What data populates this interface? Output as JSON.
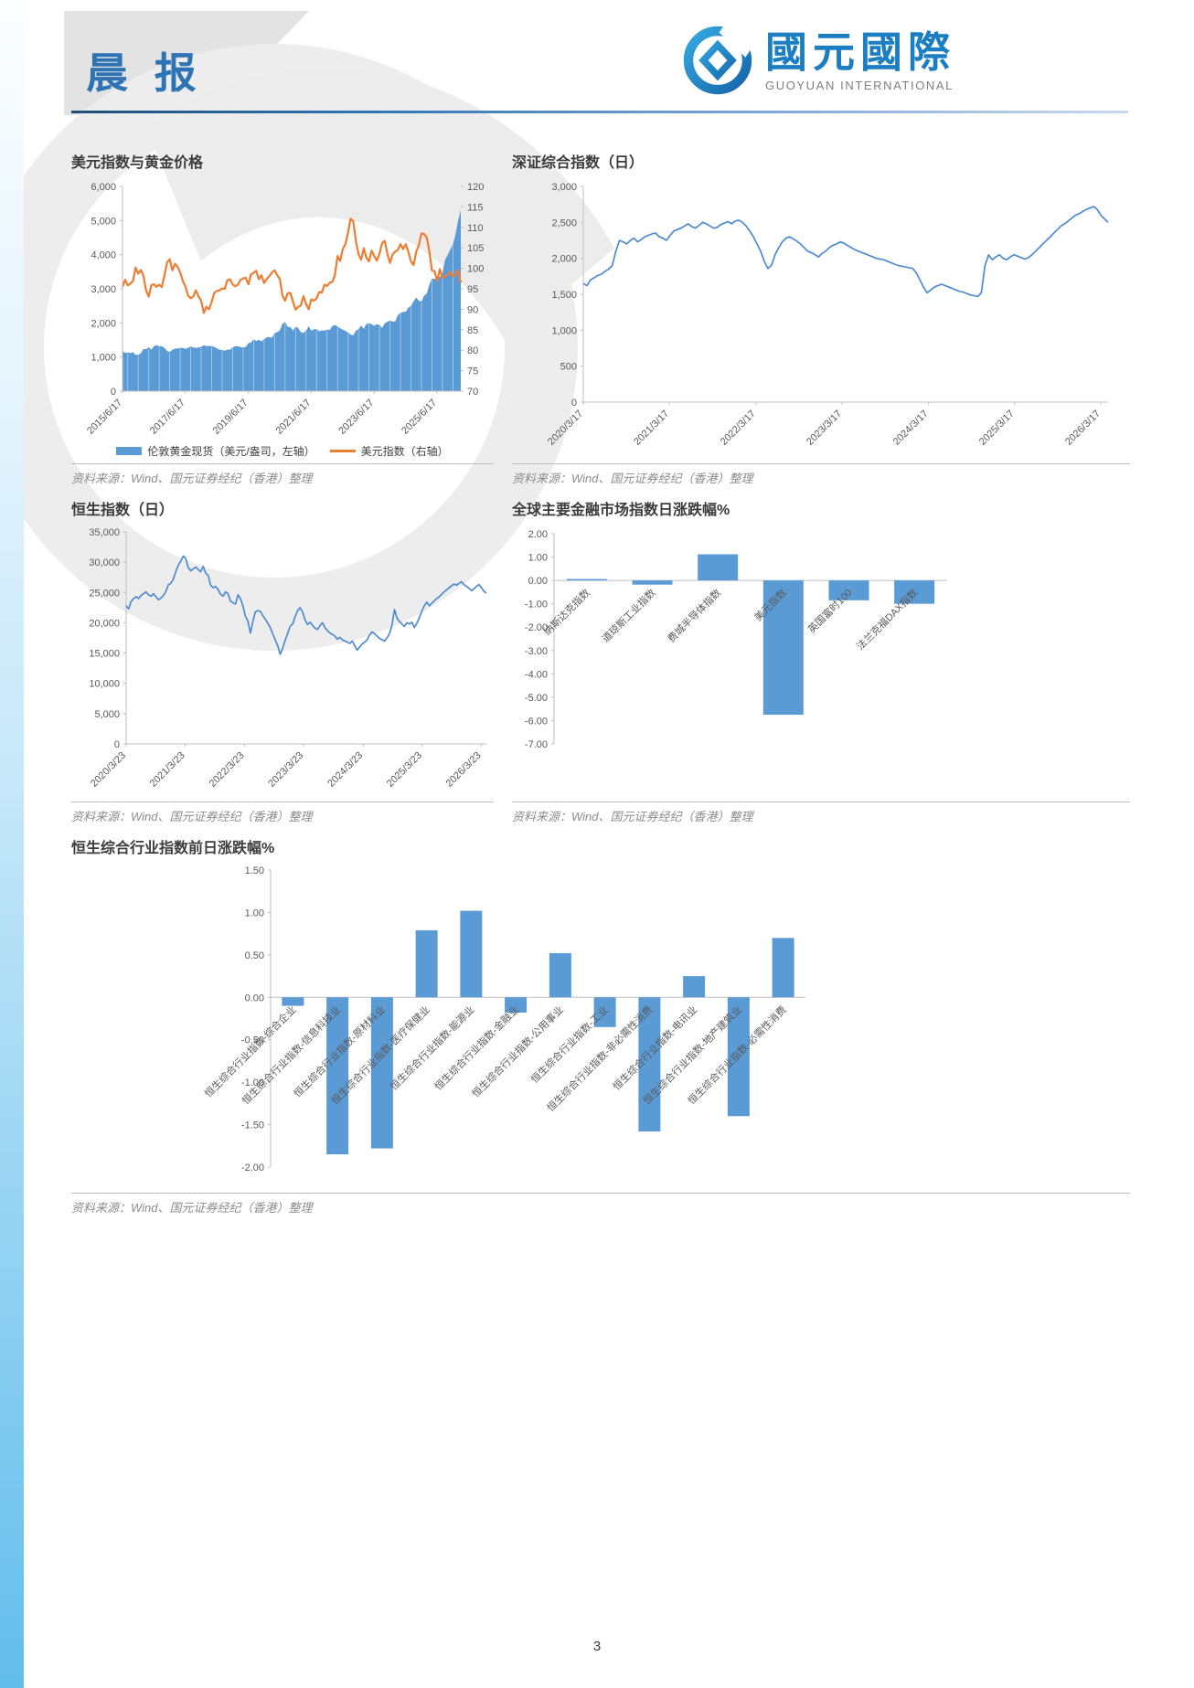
{
  "header": {
    "title": "晨 报"
  },
  "logo": {
    "name_cn": "國元國際",
    "name_en": "GUOYUAN INTERNATIONAL"
  },
  "footer": {
    "page_number": "3"
  },
  "source_note": "资料来源：Wind、国元证券经纪（香港）整理",
  "colors": {
    "accent_blue": "#2E74B5",
    "brand_blue": "#1B7EC2",
    "series_blue": "#5B9BD5",
    "line_blue": "#4F8BD0",
    "series_orange": "#ED7D31",
    "axis_gray": "#BFBFBF",
    "tick_text": "#595959"
  },
  "chart_data": [
    {
      "id": "gold-usd",
      "type": "area+line-dual-axis",
      "title": "美元指数与黄金价格",
      "legend": [
        "伦敦黄金现货（美元/盎司，左轴）",
        "美元指数（右轴）"
      ],
      "left_axis": {
        "lim": [
          0,
          6000
        ],
        "ticks": [
          "6,000",
          "5,000",
          "4,000",
          "3,000",
          "2,000",
          "1,000",
          "0"
        ]
      },
      "right_axis": {
        "lim": [
          70,
          120
        ],
        "ticks": [
          "120",
          "115",
          "110",
          "105",
          "100",
          "95",
          "90",
          "85",
          "80",
          "75",
          "70"
        ]
      },
      "x_ticks": {
        "labels": [
          "2015/6/17",
          "2017/6/17",
          "2019/6/17",
          "2021/6/17",
          "2023/6/17",
          "2025/6/17"
        ],
        "fracs": [
          0,
          0.186,
          0.372,
          0.558,
          0.744,
          0.93
        ]
      },
      "series": [
        {
          "name": "伦敦黄金现货（美元/盎司，左轴）",
          "kind": "area",
          "axis": "left",
          "color": "#5B9BD5",
          "values": [
            1180,
            1120,
            1135,
            1115,
            1140,
            1065,
            1060,
            1115,
            1235,
            1230,
            1290,
            1215,
            1320,
            1350,
            1310,
            1320,
            1270,
            1175,
            1150,
            1210,
            1250,
            1245,
            1265,
            1270,
            1240,
            1270,
            1310,
            1280,
            1270,
            1280,
            1300,
            1345,
            1320,
            1325,
            1315,
            1300,
            1250,
            1220,
            1200,
            1190,
            1215,
            1220,
            1280,
            1320,
            1315,
            1290,
            1280,
            1300,
            1410,
            1425,
            1520,
            1470,
            1510,
            1460,
            1520,
            1580,
            1585,
            1570,
            1700,
            1730,
            1780,
            1975,
            2030,
            1885,
            1880,
            1775,
            1895,
            1850,
            1730,
            1710,
            1770,
            1905,
            1770,
            1815,
            1815,
            1755,
            1780,
            1775,
            1805,
            1795,
            1910,
            1940,
            1895,
            1840,
            1805,
            1765,
            1715,
            1660,
            1635,
            1770,
            1815,
            1925,
            1825,
            1970,
            1985,
            1960,
            1915,
            1965,
            1940,
            1850,
            1985,
            2035,
            2065,
            2040,
            2045,
            2230,
            2290,
            2325,
            2330,
            2445,
            2500,
            2635,
            2745,
            2650,
            2625,
            2800,
            2860,
            3120,
            3300,
            3290,
            3300,
            3350,
            3450,
            3850,
            4000,
            4150,
            4300,
            4600,
            5000,
            5300
          ]
        },
        {
          "name": "美元指数（右轴）",
          "kind": "line",
          "axis": "right",
          "color": "#ED7D31",
          "values": [
            95.5,
            97.2,
            95.8,
            96.3,
            96.9,
            100.2,
            98.7,
            99.6,
            98.2,
            94.6,
            93.1,
            95.9,
            96.1,
            95.5,
            96.0,
            95.4,
            98.3,
            101.5,
            102.2,
            99.5,
            101.1,
            100.4,
            99.0,
            96.9,
            95.6,
            93.3,
            92.7,
            93.1,
            94.6,
            93.1,
            92.1,
            89.1,
            90.6,
            90.0,
            91.8,
            94.0,
            94.5,
            94.6,
            95.1,
            95.0,
            97.1,
            97.3,
            96.1,
            95.6,
            96.0,
            97.2,
            97.5,
            97.7,
            96.1,
            98.5,
            98.9,
            99.4,
            97.3,
            98.3,
            96.4,
            97.4,
            98.1,
            99.0,
            99.5,
            98.3,
            97.4,
            93.3,
            92.1,
            93.9,
            94.0,
            91.9,
            89.9,
            90.6,
            90.9,
            93.2,
            91.3,
            90.0,
            92.4,
            92.1,
            92.6,
            94.2,
            94.1,
            96.0,
            95.7,
            96.5,
            96.7,
            98.3,
            103.0,
            101.8,
            104.7,
            105.9,
            108.8,
            112.1,
            111.5,
            106.7,
            103.5,
            102.1,
            104.9,
            102.6,
            101.7,
            104.3,
            103.0,
            101.9,
            103.6,
            106.2,
            106.7,
            103.5,
            101.3,
            103.4,
            104.1,
            104.5,
            105.9,
            104.7,
            105.9,
            104.1,
            101.7,
            100.8,
            104.0,
            105.7,
            108.5,
            108.4,
            107.6,
            104.2,
            99.5,
            99.3,
            96.9,
            99.8,
            97.8,
            97.9,
            98.5,
            99.2,
            98.0,
            98.5,
            99.5,
            96.5
          ]
        }
      ]
    },
    {
      "id": "szse-composite",
      "type": "line",
      "title": "深证综合指数（日）",
      "y_axis": {
        "lim": [
          0,
          3000
        ],
        "ticks": [
          "3,000",
          "2,500",
          "2,000",
          "1,500",
          "1,000",
          "500",
          "0"
        ]
      },
      "x_ticks": {
        "labels": [
          "2020/3/17",
          "2021/3/17",
          "2022/3/17",
          "2023/3/17",
          "2024/3/17",
          "2025/3/17",
          "2026/3/17"
        ],
        "fracs": [
          0,
          0.164,
          0.329,
          0.493,
          0.658,
          0.822,
          0.986
        ]
      },
      "series": [
        {
          "name": "深证综合指数",
          "kind": "line",
          "color": "#4F8BD0",
          "values": [
            1650,
            1620,
            1700,
            1730,
            1760,
            1780,
            1820,
            1850,
            1900,
            2100,
            2250,
            2230,
            2200,
            2250,
            2280,
            2230,
            2260,
            2300,
            2320,
            2340,
            2350,
            2300,
            2280,
            2250,
            2320,
            2380,
            2400,
            2420,
            2450,
            2480,
            2440,
            2420,
            2460,
            2500,
            2480,
            2450,
            2420,
            2430,
            2470,
            2490,
            2510,
            2480,
            2520,
            2530,
            2500,
            2450,
            2380,
            2300,
            2200,
            2100,
            1960,
            1860,
            1900,
            2050,
            2150,
            2230,
            2280,
            2300,
            2270,
            2240,
            2200,
            2150,
            2100,
            2080,
            2050,
            2020,
            2070,
            2100,
            2150,
            2180,
            2200,
            2230,
            2210,
            2180,
            2150,
            2120,
            2100,
            2080,
            2060,
            2040,
            2020,
            2000,
            1990,
            1980,
            1960,
            1940,
            1920,
            1900,
            1890,
            1880,
            1870,
            1860,
            1800,
            1700,
            1600,
            1520,
            1560,
            1600,
            1620,
            1640,
            1620,
            1600,
            1580,
            1560,
            1540,
            1530,
            1510,
            1490,
            1480,
            1470,
            1520,
            1900,
            2050,
            1980,
            2020,
            2050,
            2000,
            1980,
            2020,
            2050,
            2030,
            2010,
            1990,
            2010,
            2050,
            2100,
            2150,
            2200,
            2250,
            2300,
            2350,
            2400,
            2450,
            2480,
            2520,
            2560,
            2600,
            2620,
            2650,
            2680,
            2700,
            2720,
            2680,
            2600,
            2550,
            2500
          ]
        }
      ]
    },
    {
      "id": "hsi",
      "type": "line",
      "title": "恒生指数（日）",
      "y_axis": {
        "lim": [
          0,
          35000
        ],
        "ticks": [
          "35,000",
          "30,000",
          "25,000",
          "20,000",
          "15,000",
          "10,000",
          "5,000",
          "0"
        ]
      },
      "x_ticks": {
        "labels": [
          "2020/3/23",
          "2021/3/23",
          "2022/3/23",
          "2023/3/23",
          "2024/3/23",
          "2025/3/23",
          "2026/3/23"
        ],
        "fracs": [
          0,
          0.164,
          0.329,
          0.493,
          0.658,
          0.822,
          0.986
        ]
      },
      "series": [
        {
          "name": "恒生指数",
          "kind": "line",
          "color": "#4F8BD0",
          "values": [
            22800,
            22300,
            23500,
            24000,
            24300,
            24000,
            24500,
            24800,
            25100,
            24600,
            24400,
            24800,
            24300,
            23800,
            24100,
            24500,
            25200,
            26300,
            26500,
            27200,
            28500,
            29500,
            30200,
            31000,
            30600,
            29100,
            28600,
            28900,
            29200,
            28800,
            28400,
            29300,
            28200,
            27800,
            26200,
            25800,
            26000,
            25500,
            24700,
            24400,
            25100,
            24800,
            23600,
            23300,
            23100,
            24600,
            24000,
            22800,
            21100,
            20300,
            18300,
            20200,
            21800,
            22000,
            21900,
            21200,
            20600,
            19900,
            19200,
            18200,
            17200,
            16200,
            14800,
            15800,
            17100,
            18200,
            19400,
            19800,
            21000,
            22000,
            22500,
            21800,
            20500,
            19700,
            20100,
            19600,
            19100,
            18900,
            19500,
            20000,
            19200,
            18700,
            18300,
            18100,
            17800,
            17300,
            17600,
            17200,
            17000,
            16800,
            16600,
            17000,
            16200,
            15500,
            16000,
            16500,
            16800,
            17200,
            18000,
            18500,
            18200,
            17800,
            17400,
            17200,
            17000,
            17500,
            18200,
            19600,
            22200,
            20800,
            20200,
            19800,
            19400,
            20000,
            19800,
            20100,
            19200,
            19900,
            20800,
            21900,
            22800,
            23400,
            22800,
            23200,
            23600,
            24000,
            24300,
            24700,
            25100,
            25400,
            25800,
            26100,
            26400,
            26200,
            26500,
            26800,
            26300,
            26000,
            25700,
            25300,
            25600,
            26000,
            26300,
            25800,
            25200,
            24900
          ]
        }
      ]
    },
    {
      "id": "global-markets",
      "type": "bar",
      "title": "全球主要金融市场指数日涨跌幅%",
      "y_axis": {
        "lim": [
          -7,
          2
        ],
        "ticks": [
          "2.00",
          "1.00",
          "0.00",
          "-1.00",
          "-2.00",
          "-3.00",
          "-4.00",
          "-5.00",
          "-6.00",
          "-7.00"
        ]
      },
      "categories": [
        "纳斯达克指数",
        "道琼斯工业指数",
        "费城半导体指数",
        "美元指数",
        "英国富时100",
        "法兰克福DAX指数"
      ],
      "values": [
        0.06,
        -0.18,
        1.12,
        -5.75,
        -0.85,
        -1.0
      ],
      "bar_color": "#5B9BD5"
    },
    {
      "id": "hsci-industries",
      "type": "bar",
      "title": "恒生综合行业指数前日涨跌幅%",
      "y_axis": {
        "lim": [
          -2,
          1.5
        ],
        "ticks": [
          "1.50",
          "1.00",
          "0.50",
          "0.00",
          "-0.50",
          "-1.00",
          "-1.50",
          "-2.00"
        ]
      },
      "categories": [
        "恒生综合行业指数-综合企业",
        "恒生综合行业指数-信息科技业",
        "恒生综合行业指数-原材料业",
        "恒生综合行业指数-医疗保健业",
        "恒生综合行业指数-能源业",
        "恒生综合行业指数-金融业",
        "恒生综合行业指数-公用事业",
        "恒生综合行业指数-工业",
        "恒生综合行业指数-非必需性消费",
        "恒生综合行业指数-电讯业",
        "恒生综合行业指数-地产建筑业",
        "恒生综合行业指数-必需性消费"
      ],
      "values": [
        -0.1,
        -1.85,
        -1.78,
        0.79,
        1.02,
        -0.18,
        0.52,
        -0.35,
        -1.58,
        0.25,
        -1.4,
        0.7
      ],
      "bar_color": "#5B9BD5"
    }
  ]
}
